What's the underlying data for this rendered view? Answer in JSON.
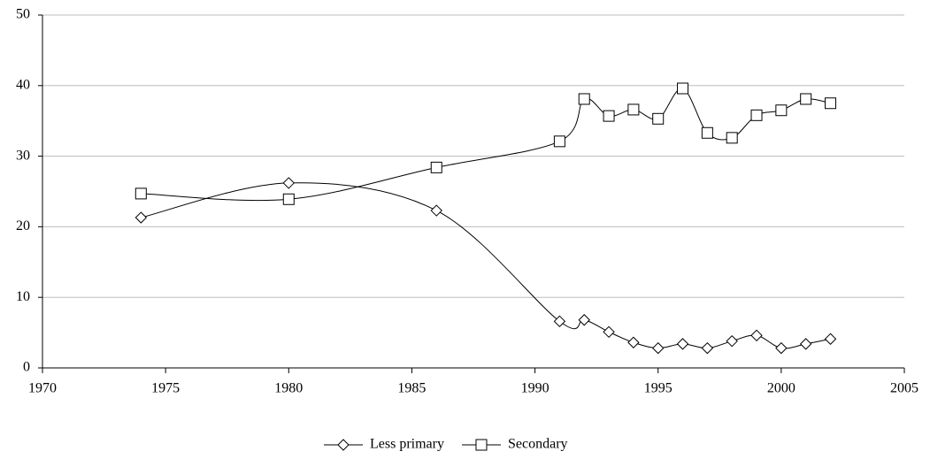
{
  "chart_data": {
    "type": "line",
    "x": [
      1974,
      1980,
      1986,
      1991,
      1992,
      1993,
      1994,
      1995,
      1996,
      1997,
      1998,
      1999,
      2000,
      2001,
      2002
    ],
    "series": [
      {
        "name": "Less primary",
        "color": "#000000",
        "marker": "diamond",
        "values": [
          21.3,
          26.2,
          22.3,
          6.6,
          6.8,
          5.1,
          3.6,
          2.8,
          3.4,
          2.8,
          3.8,
          4.6,
          2.8,
          3.4,
          4.1
        ]
      },
      {
        "name": "Secondary",
        "color": "#000000",
        "marker": "square",
        "values": [
          24.7,
          23.9,
          28.4,
          32.1,
          38.1,
          35.7,
          36.6,
          35.3,
          39.6,
          33.3,
          32.6,
          35.8,
          36.5,
          38.1,
          37.5
        ]
      }
    ],
    "xlim": [
      1970,
      2005
    ],
    "xticks": [
      1970,
      1975,
      1980,
      1985,
      1990,
      1995,
      2000,
      2005
    ],
    "ylim": [
      0,
      50
    ],
    "yticks": [
      0,
      10,
      20,
      30,
      40,
      50
    ],
    "grid": true,
    "smooth": true,
    "legend": "bottom"
  }
}
